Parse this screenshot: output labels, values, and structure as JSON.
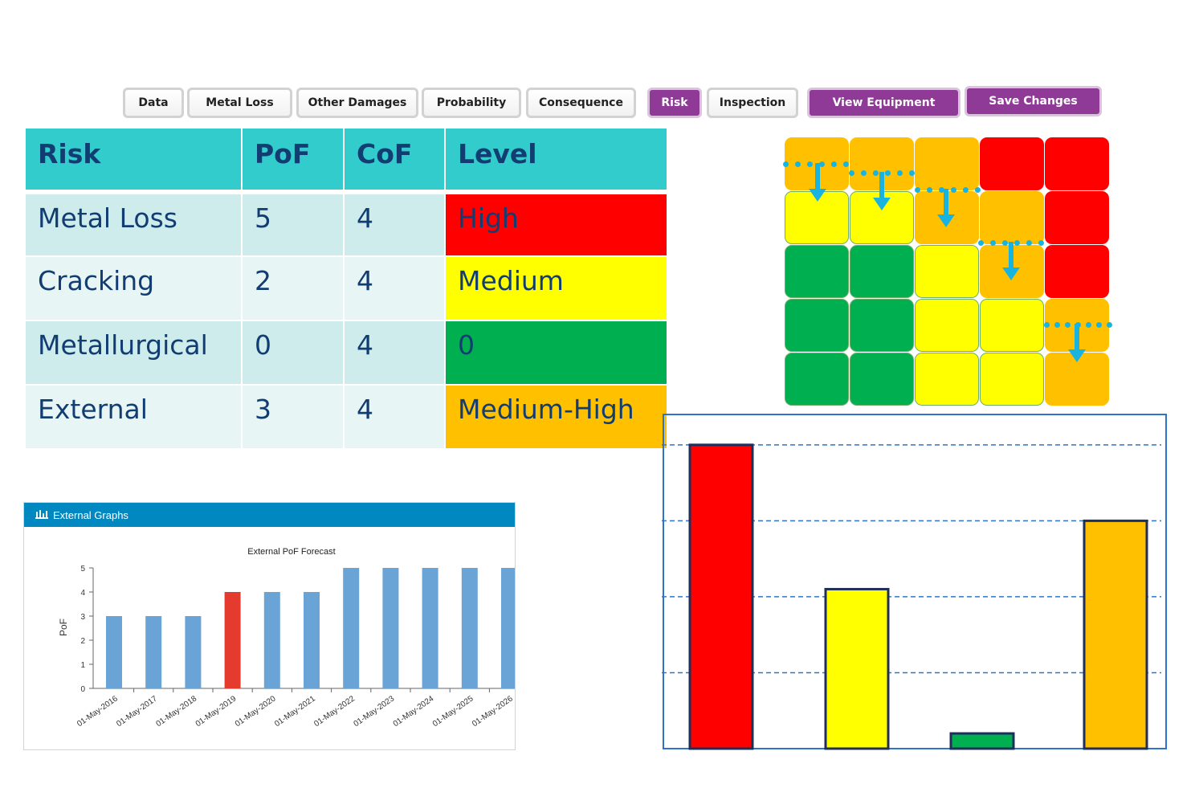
{
  "toolbar": {
    "tabs": [
      {
        "label": "Data",
        "active": false
      },
      {
        "label": "Metal Loss",
        "active": false
      },
      {
        "label": "Other Damages",
        "active": false
      },
      {
        "label": "Probability",
        "active": false
      },
      {
        "label": "Consequence",
        "active": false
      },
      {
        "label": "Risk",
        "active": true
      },
      {
        "label": "Inspection",
        "active": false
      }
    ],
    "view_equipment": "View Equipment",
    "save_changes": "Save Changes",
    "accent_color": "#8e3a96"
  },
  "risk_table": {
    "headers": [
      "Risk",
      "PoF",
      "CoF",
      "Level"
    ],
    "rows": [
      {
        "risk": "Metal Loss",
        "pof": "5",
        "cof": "4",
        "level": "High",
        "level_color": "#ff0000"
      },
      {
        "risk": "Cracking",
        "pof": "2",
        "cof": "4",
        "level": "Medium",
        "level_color": "#ffff00"
      },
      {
        "risk": "Metallurgical",
        "pof": "0",
        "cof": "4",
        "level": "0",
        "level_color": "#00b050"
      },
      {
        "risk": "External",
        "pof": "3",
        "cof": "4",
        "level": "Medium-High",
        "level_color": "#ffc000"
      }
    ],
    "header_color": "#33cccc"
  },
  "risk_matrix": {
    "colors": {
      "red": "#ff0000",
      "orange": "#ffc000",
      "yellow": "#ffff00",
      "green": "#00b050"
    },
    "grid": [
      [
        "orange",
        "orange",
        "orange",
        "red",
        "red"
      ],
      [
        "yellow",
        "yellow",
        "orange",
        "orange",
        "red"
      ],
      [
        "green",
        "green",
        "yellow",
        "orange",
        "red"
      ],
      [
        "green",
        "green",
        "yellow",
        "yellow",
        "orange"
      ],
      [
        "green",
        "green",
        "yellow",
        "yellow",
        "orange"
      ]
    ]
  },
  "external_graphs": {
    "header": "External Graphs",
    "icon": "bar-chart-icon"
  },
  "chart_data": [
    {
      "type": "bar",
      "title": "External PoF Forecast",
      "ylabel": "PoF",
      "xlabel": "",
      "ylim": [
        0,
        5
      ],
      "yticks": [
        "0",
        "1",
        "2",
        "3",
        "4",
        "5"
      ],
      "categories": [
        "01-May-2016",
        "01-May-2017",
        "01-May-2018",
        "01-May-2019",
        "01-May-2020",
        "01-May-2021",
        "01-May-2022",
        "01-May-2023",
        "01-May-2024",
        "01-May-2025",
        "01-May-2026"
      ],
      "values": [
        3,
        3,
        3,
        4,
        4,
        4,
        5,
        5,
        5,
        5,
        5
      ],
      "highlight_index": 3,
      "bar_color": "#6aa3d5",
      "highlight_color": "#e53b2f",
      "grid": false
    },
    {
      "type": "bar",
      "title": "",
      "categories": [
        "",
        "",
        "",
        ""
      ],
      "values": [
        4,
        2.1,
        0.2,
        3
      ],
      "colors": [
        "#ff0000",
        "#ffff00",
        "#00b050",
        "#ffc000"
      ],
      "ylim": [
        0,
        4.4
      ],
      "gridlines": [
        1,
        2,
        3,
        4
      ],
      "grid": true
    }
  ]
}
